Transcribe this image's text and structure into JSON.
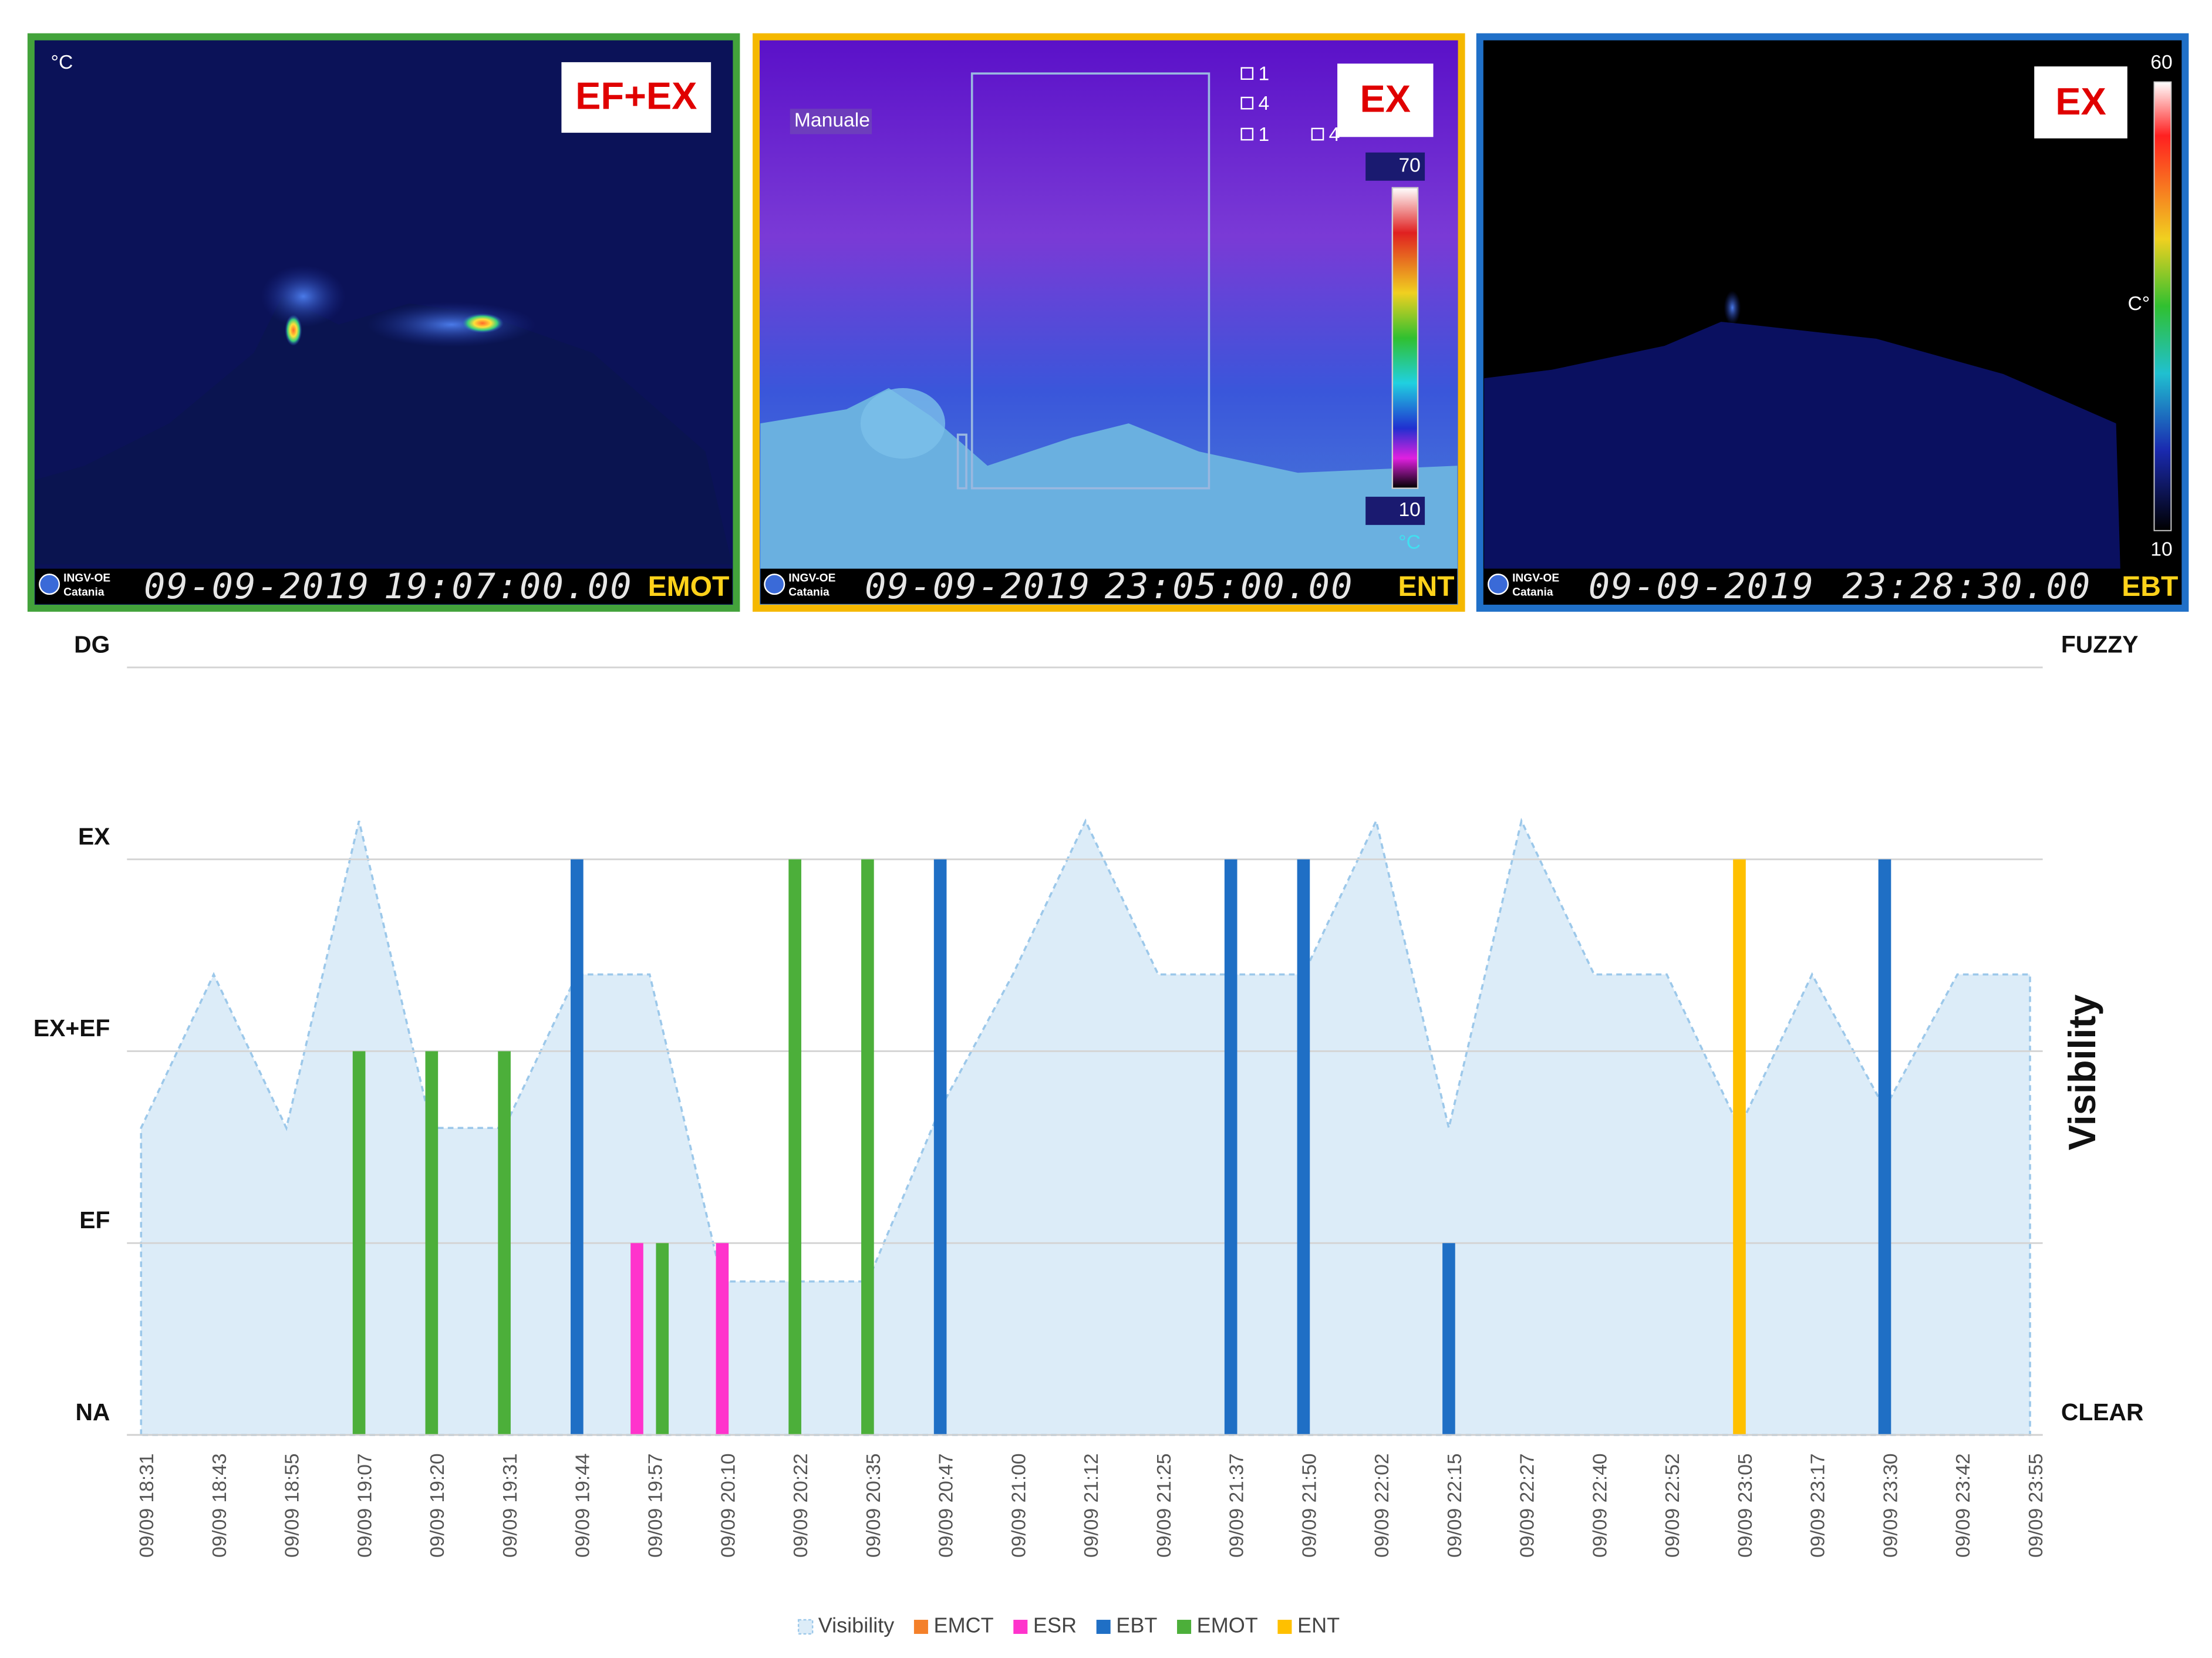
{
  "chart_data": {
    "type": "area_bar",
    "categories": [
      "09/09 18:31",
      "09/09 18:43",
      "09/09 18:55",
      "09/09 19:07",
      "09/09 19:20",
      "09/09 19:31",
      "09/09 19:44",
      "09/09 19:57",
      "09/09 20:10",
      "09/09 20:22",
      "09/09 20:35",
      "09/09 20:47",
      "09/09 21:00",
      "09/09 21:12",
      "09/09 21:25",
      "09/09 21:37",
      "09/09 21:50",
      "09/09 22:02",
      "09/09 22:15",
      "09/09 22:27",
      "09/09 22:40",
      "09/09 22:52",
      "09/09 23:05",
      "09/09 23:17",
      "09/09 23:30",
      "09/09 23:42",
      "09/09 23:55"
    ],
    "ylim": [
      0,
      4
    ],
    "yticks": [
      {
        "value": 0,
        "label": "NA"
      },
      {
        "value": 1,
        "label": "EF"
      },
      {
        "value": 2,
        "label": "EX+EF"
      },
      {
        "value": 3,
        "label": "EX"
      },
      {
        "value": 4,
        "label": "DG"
      }
    ],
    "y2lim": [
      0,
      4
    ],
    "y2ticks": [
      {
        "value": 0,
        "label": "CLEAR"
      },
      {
        "value": 4,
        "label": "FUZZY"
      }
    ],
    "y2label": "Visibility",
    "grid": true,
    "legend": "bottom",
    "series": [
      {
        "name": "Visibility",
        "type": "area",
        "axis": "y2",
        "color": "#9cc8ea",
        "values": [
          1.6,
          2.4,
          1.6,
          3.2,
          1.6,
          1.6,
          2.4,
          2.4,
          0.8,
          0.8,
          0.8,
          1.7,
          2.4,
          3.2,
          2.4,
          2.4,
          2.4,
          3.2,
          1.6,
          3.2,
          2.4,
          2.4,
          1.6,
          2.4,
          1.7,
          2.4,
          2.4
        ]
      },
      {
        "name": "EMCT",
        "type": "bar",
        "color": "#f4802a",
        "values": [
          null,
          null,
          null,
          null,
          null,
          null,
          null,
          null,
          null,
          null,
          null,
          null,
          null,
          null,
          null,
          null,
          null,
          null,
          null,
          null,
          null,
          null,
          null,
          null,
          null,
          null,
          null
        ]
      },
      {
        "name": "ESR",
        "type": "bar",
        "color": "#ff33cc",
        "values": [
          null,
          null,
          null,
          null,
          null,
          null,
          null,
          1,
          1,
          null,
          null,
          null,
          null,
          null,
          null,
          null,
          null,
          null,
          null,
          null,
          null,
          null,
          null,
          null,
          null,
          null,
          null
        ]
      },
      {
        "name": "EBT",
        "type": "bar",
        "color": "#1f6fc5",
        "values": [
          null,
          null,
          null,
          null,
          null,
          null,
          3,
          null,
          null,
          null,
          null,
          3,
          null,
          null,
          null,
          3,
          3,
          null,
          1,
          null,
          null,
          null,
          null,
          null,
          3,
          null,
          null
        ]
      },
      {
        "name": "EMOT",
        "type": "bar",
        "color": "#4caf3a",
        "values": [
          null,
          null,
          null,
          2,
          2,
          2,
          null,
          1,
          null,
          3,
          3,
          null,
          null,
          null,
          null,
          null,
          null,
          null,
          null,
          null,
          null,
          null,
          null,
          null,
          null,
          null,
          null
        ]
      },
      {
        "name": "ENT",
        "type": "bar",
        "color": "#ffc000",
        "values": [
          null,
          null,
          null,
          null,
          null,
          null,
          null,
          null,
          null,
          null,
          null,
          null,
          null,
          null,
          null,
          null,
          null,
          null,
          null,
          null,
          null,
          null,
          3,
          null,
          null,
          null,
          null
        ]
      }
    ]
  },
  "panels": [
    {
      "badge": "EF+EX",
      "unit": "°C",
      "logo": [
        "INGV-OE",
        "Catania"
      ],
      "date": "09-09-2019",
      "time": "19:07:00.00",
      "camera": "EMOT"
    },
    {
      "badge": "EX",
      "mode": "Manuale",
      "roi": [
        "1",
        "4",
        "1",
        "4"
      ],
      "scale_max": "70",
      "scale_min": "10",
      "unit": "°C",
      "logo": [
        "INGV-OE",
        "Catania"
      ],
      "date": "09-09-2019",
      "time": "23:05:00.00",
      "camera": "ENT"
    },
    {
      "badge": "EX",
      "scale_max": "60",
      "scale_min": "10",
      "unit": "C°",
      "logo": [
        "INGV-OE",
        "Catania"
      ],
      "date": "09-09-2019",
      "time": "23:28:30.00",
      "camera": "EBT"
    }
  ]
}
